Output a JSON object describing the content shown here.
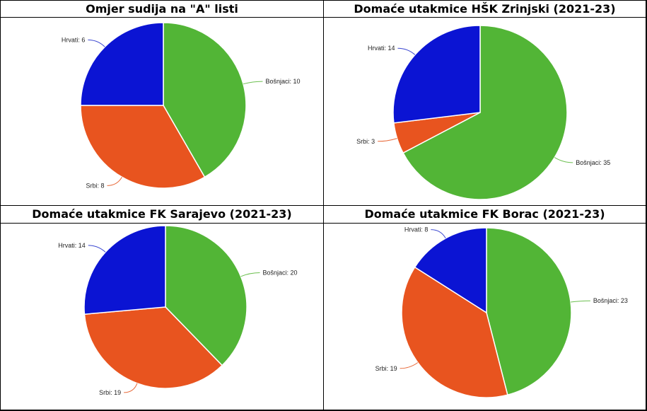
{
  "colors": {
    "bosnjaci": "#52b536",
    "srbi": "#e8541f",
    "hrvati": "#0b14d3",
    "leader_hrvati": "#3a46d0",
    "leader_srbi": "#e86a3a",
    "leader_bosnjaci": "#6cbf50"
  },
  "chart_data": [
    {
      "type": "pie",
      "title": "Omjer sudija na \"A\" listi",
      "slices": [
        {
          "label": "Bošnjaci",
          "value": 10,
          "color_key": "bosnjaci",
          "text": "Bošnjaci: 10"
        },
        {
          "label": "Srbi",
          "value": 8,
          "color_key": "srbi",
          "text": "Srbi: 8"
        },
        {
          "label": "Hrvati",
          "value": 6,
          "color_key": "hrvati",
          "text": "Hrvati: 6"
        }
      ]
    },
    {
      "type": "pie",
      "title": "Domaće utakmice HŠK Zrinjski (2021-23)",
      "slices": [
        {
          "label": "Bošnjaci",
          "value": 35,
          "color_key": "bosnjaci",
          "text": "Bošnjaci: 35"
        },
        {
          "label": "Srbi",
          "value": 3,
          "color_key": "srbi",
          "text": "Srbi: 3"
        },
        {
          "label": "Hrvati",
          "value": 14,
          "color_key": "hrvati",
          "text": "Hrvati: 14"
        }
      ]
    },
    {
      "type": "pie",
      "title": "Domaće utakmice FK Sarajevo (2021-23)",
      "slices": [
        {
          "label": "Bošnjaci",
          "value": 20,
          "color_key": "bosnjaci",
          "text": "Bošnjaci: 20"
        },
        {
          "label": "Srbi",
          "value": 19,
          "color_key": "srbi",
          "text": "Srbi: 19"
        },
        {
          "label": "Hrvati",
          "value": 14,
          "color_key": "hrvati",
          "text": "Hrvati: 14"
        }
      ]
    },
    {
      "type": "pie",
      "title": "Domaće utakmice FK Borac (2021-23)",
      "slices": [
        {
          "label": "Bošnjaci",
          "value": 23,
          "color_key": "bosnjaci",
          "text": "Bošnjaci: 23"
        },
        {
          "label": "Srbi",
          "value": 19,
          "color_key": "srbi",
          "text": "Srbi: 19"
        },
        {
          "label": "Hrvati",
          "value": 8,
          "color_key": "hrvati",
          "text": "Hrvati: 8"
        }
      ]
    }
  ]
}
